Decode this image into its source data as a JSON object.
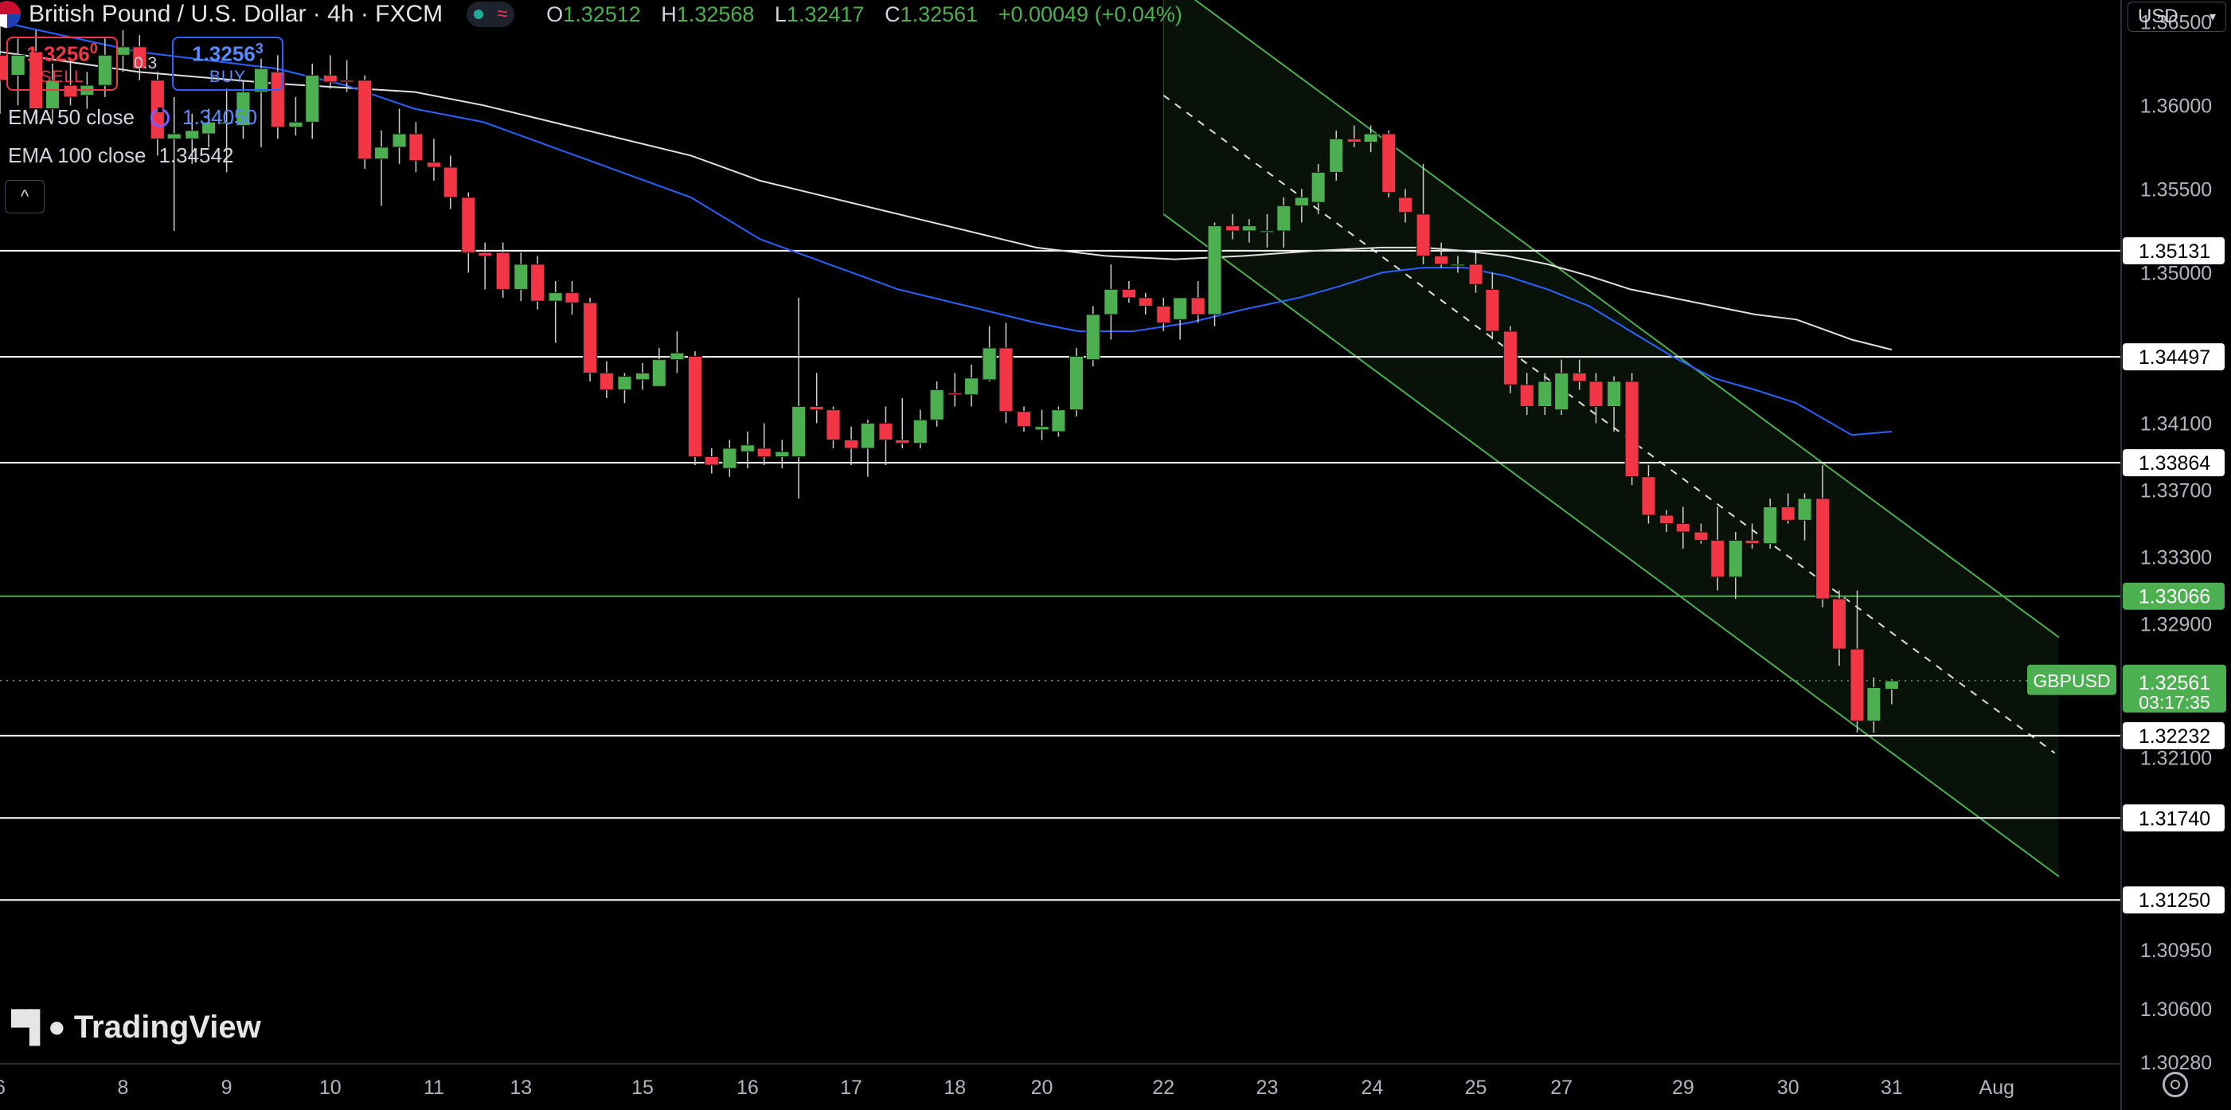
{
  "header": {
    "symbol": "British Pound / U.S. Dollar · 4h · FXCM",
    "ohlc": [
      {
        "key": "O",
        "value": "1.32512"
      },
      {
        "key": "H",
        "value": "1.32568"
      },
      {
        "key": "L",
        "value": "1.32417"
      },
      {
        "key": "C",
        "value": "1.32561"
      },
      {
        "key": "",
        "value": "+0.00049 (+0.04%)"
      }
    ]
  },
  "trade": {
    "sell_price": "1.3256",
    "sell_sup": "0",
    "sell_label": "SELL",
    "spread": "0.3",
    "buy_price": "1.3256",
    "buy_sup": "3",
    "buy_label": "BUY"
  },
  "indicators": {
    "ema50_label": "EMA 50 close",
    "ema50_value": "1.34050",
    "ema100_label": "EMA 100 close",
    "ema100_value": "1.34542"
  },
  "currency": "USD",
  "logo_text": "TradingView",
  "colors": {
    "up": "#4caf50",
    "down": "#f23645",
    "ema50": "#2962ff",
    "ema100": "#e0e0e0",
    "channel": "#4caf50"
  },
  "chart_data": {
    "type": "candlestick",
    "y_range": [
      1.3028,
      1.3663
    ],
    "x_range": [
      0,
      1535
    ],
    "x_ticks": [
      {
        "x": 0,
        "label": "6"
      },
      {
        "x": 89,
        "label": "8"
      },
      {
        "x": 164,
        "label": "9"
      },
      {
        "x": 239,
        "label": "10"
      },
      {
        "x": 314,
        "label": "11"
      },
      {
        "x": 377,
        "label": "13"
      },
      {
        "x": 465,
        "label": "15"
      },
      {
        "x": 541,
        "label": "16"
      },
      {
        "x": 616,
        "label": "17"
      },
      {
        "x": 691,
        "label": "18"
      },
      {
        "x": 754,
        "label": "20"
      },
      {
        "x": 842,
        "label": "22"
      },
      {
        "x": 917,
        "label": "23"
      },
      {
        "x": 993,
        "label": "24"
      },
      {
        "x": 1068,
        "label": "25"
      },
      {
        "x": 1130,
        "label": "27"
      },
      {
        "x": 1218,
        "label": "29"
      },
      {
        "x": 1294,
        "label": "30"
      },
      {
        "x": 1369,
        "label": "31"
      },
      {
        "x": 1445,
        "label": "Aug"
      }
    ],
    "y_ticks": [
      "1.36500",
      "1.36000",
      "1.35500",
      "1.35000",
      "1.34100",
      "1.33700",
      "1.33300",
      "1.32900",
      "1.32100",
      "1.30950",
      "1.30600",
      "1.30280"
    ],
    "y_tick_values": [
      1.365,
      1.36,
      1.355,
      1.35,
      1.341,
      1.337,
      1.333,
      1.329,
      1.321,
      1.3095,
      1.306,
      1.3028
    ],
    "h_levels": [
      {
        "label": "1.35131",
        "value": 1.35131,
        "color": "#ffffff"
      },
      {
        "label": "1.34497",
        "value": 1.34497,
        "color": "#ffffff"
      },
      {
        "label": "1.33864",
        "value": 1.33864,
        "color": "#ffffff"
      },
      {
        "label": "1.33066",
        "value": 1.33066,
        "color": "#4caf50"
      },
      {
        "label": "1.32232",
        "value": 1.32232,
        "color": "#ffffff"
      },
      {
        "label": "1.31740",
        "value": 1.3174,
        "color": "#ffffff"
      },
      {
        "label": "1.31250",
        "value": 1.3125,
        "color": "#ffffff"
      }
    ],
    "last_price": {
      "symbol": "GBPUSD",
      "value": 1.32561,
      "label": "1.32561",
      "countdown": "03:17:35"
    },
    "channel": {
      "x_start": 842,
      "x_end": 1490,
      "upper_start": 1.3677,
      "upper_end": 1.3282,
      "mid_start": 1.3606,
      "mid_end": 1.3211,
      "lower_start": 1.3535,
      "lower_end": 1.3139
    },
    "candles": [
      {
        "x": 0,
        "o": 1.363,
        "h": 1.3655,
        "l": 1.3595,
        "c": 1.3615
      },
      {
        "x": 13,
        "o": 1.3618,
        "h": 1.364,
        "l": 1.36,
        "c": 1.363
      },
      {
        "x": 26,
        "o": 1.3632,
        "h": 1.3645,
        "l": 1.359,
        "c": 1.3598
      },
      {
        "x": 38,
        "o": 1.3598,
        "h": 1.3625,
        "l": 1.359,
        "c": 1.3615
      },
      {
        "x": 51,
        "o": 1.3612,
        "h": 1.3628,
        "l": 1.36,
        "c": 1.3605
      },
      {
        "x": 63,
        "o": 1.3606,
        "h": 1.362,
        "l": 1.3598,
        "c": 1.3612
      },
      {
        "x": 76,
        "o": 1.3612,
        "h": 1.364,
        "l": 1.3605,
        "c": 1.363
      },
      {
        "x": 89,
        "o": 1.363,
        "h": 1.3645,
        "l": 1.362,
        "c": 1.3635
      },
      {
        "x": 101,
        "o": 1.3635,
        "h": 1.3642,
        "l": 1.3615,
        "c": 1.3622
      },
      {
        "x": 114,
        "o": 1.3615,
        "h": 1.362,
        "l": 1.357,
        "c": 1.358
      },
      {
        "x": 126,
        "o": 1.358,
        "h": 1.3605,
        "l": 1.3525,
        "c": 1.3583
      },
      {
        "x": 139,
        "o": 1.358,
        "h": 1.3595,
        "l": 1.3565,
        "c": 1.3585
      },
      {
        "x": 151,
        "o": 1.3583,
        "h": 1.3598,
        "l": 1.3575,
        "c": 1.359
      },
      {
        "x": 164,
        "o": 1.359,
        "h": 1.361,
        "l": 1.356,
        "c": 1.359
      },
      {
        "x": 176,
        "o": 1.3588,
        "h": 1.3615,
        "l": 1.358,
        "c": 1.3608
      },
      {
        "x": 189,
        "o": 1.3608,
        "h": 1.3628,
        "l": 1.3575,
        "c": 1.3622
      },
      {
        "x": 201,
        "o": 1.362,
        "h": 1.363,
        "l": 1.358,
        "c": 1.3587
      },
      {
        "x": 214,
        "o": 1.3587,
        "h": 1.3605,
        "l": 1.3582,
        "c": 1.359
      },
      {
        "x": 226,
        "o": 1.359,
        "h": 1.3625,
        "l": 1.358,
        "c": 1.3618
      },
      {
        "x": 239,
        "o": 1.3618,
        "h": 1.363,
        "l": 1.361,
        "c": 1.3614
      },
      {
        "x": 251,
        "o": 1.3615,
        "h": 1.3627,
        "l": 1.3608,
        "c": 1.3614
      },
      {
        "x": 264,
        "o": 1.3615,
        "h": 1.3618,
        "l": 1.3562,
        "c": 1.3568
      },
      {
        "x": 276,
        "o": 1.3568,
        "h": 1.3585,
        "l": 1.354,
        "c": 1.3575
      },
      {
        "x": 289,
        "o": 1.3575,
        "h": 1.3598,
        "l": 1.3565,
        "c": 1.3583
      },
      {
        "x": 301,
        "o": 1.3583,
        "h": 1.359,
        "l": 1.356,
        "c": 1.3567
      },
      {
        "x": 314,
        "o": 1.3566,
        "h": 1.358,
        "l": 1.3555,
        "c": 1.3563
      },
      {
        "x": 326,
        "o": 1.3563,
        "h": 1.357,
        "l": 1.3538,
        "c": 1.3545
      },
      {
        "x": 339,
        "o": 1.3545,
        "h": 1.3548,
        "l": 1.35,
        "c": 1.3512
      },
      {
        "x": 351,
        "o": 1.3512,
        "h": 1.3518,
        "l": 1.349,
        "c": 1.351
      },
      {
        "x": 364,
        "o": 1.3512,
        "h": 1.3518,
        "l": 1.3485,
        "c": 1.349
      },
      {
        "x": 377,
        "o": 1.349,
        "h": 1.3512,
        "l": 1.3483,
        "c": 1.3505
      },
      {
        "x": 389,
        "o": 1.3505,
        "h": 1.351,
        "l": 1.3478,
        "c": 1.3483
      },
      {
        "x": 402,
        "o": 1.3483,
        "h": 1.3495,
        "l": 1.3458,
        "c": 1.3488
      },
      {
        "x": 414,
        "o": 1.3488,
        "h": 1.3495,
        "l": 1.3475,
        "c": 1.3482
      },
      {
        "x": 427,
        "o": 1.3482,
        "h": 1.3485,
        "l": 1.3435,
        "c": 1.344
      },
      {
        "x": 439,
        "o": 1.344,
        "h": 1.3447,
        "l": 1.3425,
        "c": 1.343
      },
      {
        "x": 452,
        "o": 1.343,
        "h": 1.344,
        "l": 1.3422,
        "c": 1.3438
      },
      {
        "x": 465,
        "o": 1.3436,
        "h": 1.3446,
        "l": 1.343,
        "c": 1.344
      },
      {
        "x": 477,
        "o": 1.3432,
        "h": 1.3455,
        "l": 1.3432,
        "c": 1.3448
      },
      {
        "x": 490,
        "o": 1.3448,
        "h": 1.3465,
        "l": 1.344,
        "c": 1.3452
      },
      {
        "x": 503,
        "o": 1.345,
        "h": 1.3453,
        "l": 1.3385,
        "c": 1.339
      },
      {
        "x": 515,
        "o": 1.339,
        "h": 1.3395,
        "l": 1.338,
        "c": 1.3385
      },
      {
        "x": 528,
        "o": 1.3383,
        "h": 1.34,
        "l": 1.3378,
        "c": 1.3395
      },
      {
        "x": 541,
        "o": 1.3393,
        "h": 1.3405,
        "l": 1.3383,
        "c": 1.3397
      },
      {
        "x": 553,
        "o": 1.3395,
        "h": 1.341,
        "l": 1.3385,
        "c": 1.339
      },
      {
        "x": 566,
        "o": 1.339,
        "h": 1.34,
        "l": 1.3383,
        "c": 1.3393
      },
      {
        "x": 578,
        "o": 1.339,
        "h": 1.3485,
        "l": 1.3365,
        "c": 1.342
      },
      {
        "x": 591,
        "o": 1.342,
        "h": 1.344,
        "l": 1.341,
        "c": 1.3418
      },
      {
        "x": 603,
        "o": 1.3418,
        "h": 1.342,
        "l": 1.3395,
        "c": 1.34
      },
      {
        "x": 616,
        "o": 1.34,
        "h": 1.3408,
        "l": 1.3385,
        "c": 1.3395
      },
      {
        "x": 628,
        "o": 1.3395,
        "h": 1.3412,
        "l": 1.3378,
        "c": 1.341
      },
      {
        "x": 641,
        "o": 1.341,
        "h": 1.342,
        "l": 1.3385,
        "c": 1.34
      },
      {
        "x": 653,
        "o": 1.34,
        "h": 1.3425,
        "l": 1.3395,
        "c": 1.3398
      },
      {
        "x": 666,
        "o": 1.3398,
        "h": 1.3418,
        "l": 1.3395,
        "c": 1.3412
      },
      {
        "x": 678,
        "o": 1.3412,
        "h": 1.3435,
        "l": 1.3408,
        "c": 1.343
      },
      {
        "x": 691,
        "o": 1.3428,
        "h": 1.344,
        "l": 1.342,
        "c": 1.3427
      },
      {
        "x": 703,
        "o": 1.3427,
        "h": 1.3445,
        "l": 1.342,
        "c": 1.3437
      },
      {
        "x": 716,
        "o": 1.3436,
        "h": 1.3468,
        "l": 1.3435,
        "c": 1.3455
      },
      {
        "x": 728,
        "o": 1.3455,
        "h": 1.347,
        "l": 1.341,
        "c": 1.3417
      },
      {
        "x": 741,
        "o": 1.3417,
        "h": 1.342,
        "l": 1.3405,
        "c": 1.3408
      },
      {
        "x": 754,
        "o": 1.3406,
        "h": 1.3418,
        "l": 1.34,
        "c": 1.3408
      },
      {
        "x": 766,
        "o": 1.3405,
        "h": 1.342,
        "l": 1.3402,
        "c": 1.3418
      },
      {
        "x": 779,
        "o": 1.3418,
        "h": 1.3455,
        "l": 1.3414,
        "c": 1.345
      },
      {
        "x": 791,
        "o": 1.3448,
        "h": 1.348,
        "l": 1.3444,
        "c": 1.3475
      },
      {
        "x": 804,
        "o": 1.3475,
        "h": 1.3505,
        "l": 1.346,
        "c": 1.349
      },
      {
        "x": 817,
        "o": 1.349,
        "h": 1.3495,
        "l": 1.3482,
        "c": 1.3485
      },
      {
        "x": 829,
        "o": 1.3485,
        "h": 1.3488,
        "l": 1.3475,
        "c": 1.348
      },
      {
        "x": 842,
        "o": 1.348,
        "h": 1.3485,
        "l": 1.3465,
        "c": 1.347
      },
      {
        "x": 854,
        "o": 1.3472,
        "h": 1.3485,
        "l": 1.346,
        "c": 1.3485
      },
      {
        "x": 867,
        "o": 1.3485,
        "h": 1.3495,
        "l": 1.347,
        "c": 1.3475
      },
      {
        "x": 879,
        "o": 1.3475,
        "h": 1.353,
        "l": 1.3468,
        "c": 1.3528
      },
      {
        "x": 892,
        "o": 1.3528,
        "h": 1.3535,
        "l": 1.352,
        "c": 1.3525
      },
      {
        "x": 904,
        "o": 1.3525,
        "h": 1.3532,
        "l": 1.3518,
        "c": 1.3528
      },
      {
        "x": 917,
        "o": 1.3525,
        "h": 1.3535,
        "l": 1.3515,
        "c": 1.3525
      },
      {
        "x": 929,
        "o": 1.3525,
        "h": 1.3545,
        "l": 1.3515,
        "c": 1.354
      },
      {
        "x": 942,
        "o": 1.354,
        "h": 1.355,
        "l": 1.353,
        "c": 1.3545
      },
      {
        "x": 954,
        "o": 1.3542,
        "h": 1.3565,
        "l": 1.3535,
        "c": 1.356
      },
      {
        "x": 967,
        "o": 1.356,
        "h": 1.3585,
        "l": 1.3555,
        "c": 1.358
      },
      {
        "x": 980,
        "o": 1.358,
        "h": 1.3588,
        "l": 1.3575,
        "c": 1.3578
      },
      {
        "x": 992,
        "o": 1.3578,
        "h": 1.3588,
        "l": 1.3572,
        "c": 1.3583
      },
      {
        "x": 1005,
        "o": 1.3583,
        "h": 1.3585,
        "l": 1.3545,
        "c": 1.3548
      },
      {
        "x": 1017,
        "o": 1.3545,
        "h": 1.355,
        "l": 1.353,
        "c": 1.3536
      },
      {
        "x": 1030,
        "o": 1.3535,
        "h": 1.3565,
        "l": 1.3505,
        "c": 1.351
      },
      {
        "x": 1043,
        "o": 1.351,
        "h": 1.3518,
        "l": 1.3503,
        "c": 1.3505
      },
      {
        "x": 1055,
        "o": 1.3505,
        "h": 1.351,
        "l": 1.35,
        "c": 1.3505
      },
      {
        "x": 1068,
        "o": 1.3505,
        "h": 1.3512,
        "l": 1.3488,
        "c": 1.3493
      },
      {
        "x": 1080,
        "o": 1.349,
        "h": 1.35,
        "l": 1.346,
        "c": 1.3465
      },
      {
        "x": 1093,
        "o": 1.3465,
        "h": 1.3468,
        "l": 1.3428,
        "c": 1.3433
      },
      {
        "x": 1105,
        "o": 1.3433,
        "h": 1.344,
        "l": 1.3415,
        "c": 1.342
      },
      {
        "x": 1118,
        "o": 1.342,
        "h": 1.344,
        "l": 1.3415,
        "c": 1.3435
      },
      {
        "x": 1130,
        "o": 1.3418,
        "h": 1.3448,
        "l": 1.3415,
        "c": 1.344
      },
      {
        "x": 1143,
        "o": 1.344,
        "h": 1.3448,
        "l": 1.343,
        "c": 1.3435
      },
      {
        "x": 1155,
        "o": 1.3435,
        "h": 1.344,
        "l": 1.341,
        "c": 1.342
      },
      {
        "x": 1168,
        "o": 1.342,
        "h": 1.3438,
        "l": 1.3405,
        "c": 1.3435
      },
      {
        "x": 1181,
        "o": 1.3435,
        "h": 1.344,
        "l": 1.3373,
        "c": 1.3378
      },
      {
        "x": 1193,
        "o": 1.3378,
        "h": 1.3385,
        "l": 1.335,
        "c": 1.3355
      },
      {
        "x": 1206,
        "o": 1.3355,
        "h": 1.3358,
        "l": 1.3345,
        "c": 1.335
      },
      {
        "x": 1218,
        "o": 1.335,
        "h": 1.336,
        "l": 1.3335,
        "c": 1.3345
      },
      {
        "x": 1231,
        "o": 1.3345,
        "h": 1.335,
        "l": 1.3338,
        "c": 1.334
      },
      {
        "x": 1243,
        "o": 1.334,
        "h": 1.336,
        "l": 1.331,
        "c": 1.3318
      },
      {
        "x": 1256,
        "o": 1.3318,
        "h": 1.3345,
        "l": 1.3305,
        "c": 1.334
      },
      {
        "x": 1268,
        "o": 1.334,
        "h": 1.335,
        "l": 1.3335,
        "c": 1.3338
      },
      {
        "x": 1281,
        "o": 1.3338,
        "h": 1.3365,
        "l": 1.3335,
        "c": 1.336
      },
      {
        "x": 1294,
        "o": 1.336,
        "h": 1.3368,
        "l": 1.335,
        "c": 1.3352
      },
      {
        "x": 1306,
        "o": 1.3352,
        "h": 1.3368,
        "l": 1.334,
        "c": 1.3365
      },
      {
        "x": 1319,
        "o": 1.3365,
        "h": 1.3385,
        "l": 1.33,
        "c": 1.3305
      },
      {
        "x": 1331,
        "o": 1.3305,
        "h": 1.331,
        "l": 1.3265,
        "c": 1.3275
      },
      {
        "x": 1344,
        "o": 1.3275,
        "h": 1.331,
        "l": 1.3225,
        "c": 1.3232
      },
      {
        "x": 1356,
        "o": 1.3232,
        "h": 1.3258,
        "l": 1.3225,
        "c": 1.3252
      },
      {
        "x": 1369,
        "o": 1.3251,
        "h": 1.3257,
        "l": 1.3242,
        "c": 1.3256
      }
    ],
    "ema50": [
      [
        0,
        1.365
      ],
      [
        100,
        1.3632
      ],
      [
        200,
        1.3622
      ],
      [
        250,
        1.3612
      ],
      [
        300,
        1.3598
      ],
      [
        350,
        1.359
      ],
      [
        400,
        1.3575
      ],
      [
        450,
        1.356
      ],
      [
        500,
        1.3545
      ],
      [
        550,
        1.352
      ],
      [
        600,
        1.3505
      ],
      [
        650,
        1.349
      ],
      [
        700,
        1.348
      ],
      [
        750,
        1.347
      ],
      [
        780,
        1.3465
      ],
      [
        820,
        1.3465
      ],
      [
        860,
        1.347
      ],
      [
        900,
        1.3478
      ],
      [
        940,
        1.3485
      ],
      [
        970,
        1.3492
      ],
      [
        1000,
        1.35
      ],
      [
        1030,
        1.3503
      ],
      [
        1060,
        1.3503
      ],
      [
        1090,
        1.3498
      ],
      [
        1120,
        1.349
      ],
      [
        1150,
        1.348
      ],
      [
        1180,
        1.3465
      ],
      [
        1210,
        1.345
      ],
      [
        1240,
        1.3437
      ],
      [
        1270,
        1.343
      ],
      [
        1300,
        1.3422
      ],
      [
        1340,
        1.3403
      ],
      [
        1369,
        1.3405
      ]
    ],
    "ema100": [
      [
        0,
        1.3632
      ],
      [
        100,
        1.362
      ],
      [
        200,
        1.3613
      ],
      [
        300,
        1.3608
      ],
      [
        350,
        1.36
      ],
      [
        400,
        1.359
      ],
      [
        450,
        1.358
      ],
      [
        500,
        1.357
      ],
      [
        550,
        1.3555
      ],
      [
        600,
        1.3545
      ],
      [
        650,
        1.3535
      ],
      [
        700,
        1.3525
      ],
      [
        750,
        1.3515
      ],
      [
        800,
        1.351
      ],
      [
        850,
        1.3508
      ],
      [
        900,
        1.351
      ],
      [
        950,
        1.3513
      ],
      [
        1000,
        1.3515
      ],
      [
        1030,
        1.3515
      ],
      [
        1060,
        1.3513
      ],
      [
        1090,
        1.351
      ],
      [
        1120,
        1.3505
      ],
      [
        1150,
        1.3498
      ],
      [
        1180,
        1.349
      ],
      [
        1210,
        1.3485
      ],
      [
        1240,
        1.348
      ],
      [
        1270,
        1.3475
      ],
      [
        1300,
        1.3472
      ],
      [
        1340,
        1.346
      ],
      [
        1369,
        1.3454
      ]
    ]
  }
}
